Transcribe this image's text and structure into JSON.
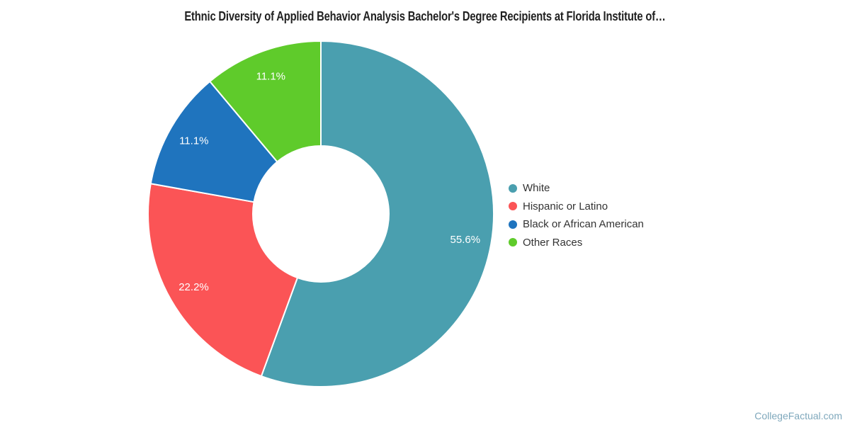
{
  "page": {
    "watermark": "CollegeFactual.com"
  },
  "chart_data": {
    "type": "pie",
    "donut": true,
    "title": "Ethnic Diversity of Applied Behavior Analysis Bachelor's Degree Recipients at Florida Institute of…",
    "categories": [
      "White",
      "Hispanic or Latino",
      "Black or African American",
      "Other Races"
    ],
    "values": [
      55.6,
      22.2,
      11.1,
      11.1
    ],
    "slice_labels": [
      "55.6%",
      "22.2%",
      "11.1%",
      "11.1%"
    ],
    "colors": [
      "#4A9FAF",
      "#FB5456",
      "#1F74BE",
      "#5FCB2B"
    ],
    "label_text_color": "#FFFFFF",
    "legend_position": "right",
    "legend_text_color": "#333333",
    "start_angle_deg": 0,
    "direction": "clockwise",
    "total": 100
  }
}
